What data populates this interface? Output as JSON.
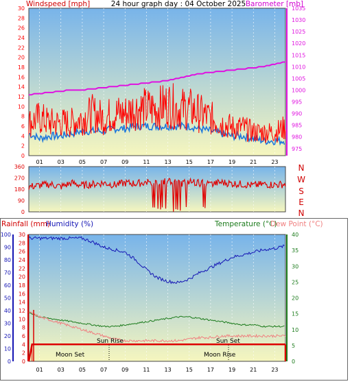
{
  "header": {
    "title": "24 hour graph day : 04 October 2025",
    "left_axis_label": "Windspeed [mph]",
    "right_axis_label": "Barometer [mb]"
  },
  "colors": {
    "wind": "#ff0000",
    "gust_blue": "#1e78dc",
    "barometer": "#e010e0",
    "direction": "#e00000",
    "humidity": "#1414b4",
    "temperature": "#1a7a1a",
    "dewpoint": "#f08080",
    "rainfall": "#dd0000",
    "sky_top": "#78b4ea",
    "sky_bottom": "#f6f6be"
  },
  "direction_axis": {
    "letters": [
      "N",
      "W",
      "S",
      "E",
      "N"
    ]
  },
  "lower_header": {
    "rainfall_label": "Rainfall (mm)",
    "humidity_label": "Humidity (%)",
    "temperature_label": "Temperature (°C)",
    "dewpoint_label": "Dew Point (°C)"
  },
  "events": {
    "moon_set": "Moon Set",
    "sun_rise": "Sun Rise",
    "sun_set": "Sun Set",
    "moon_rise": "Moon Rise"
  },
  "chart_data": [
    {
      "type": "line",
      "name": "wind-barometer",
      "x_ticks": [
        "01",
        "03",
        "05",
        "07",
        "09",
        "11",
        "13",
        "15",
        "17",
        "19",
        "21",
        "23"
      ],
      "left_ylim": [
        0,
        30
      ],
      "left_ticks": [
        0,
        2,
        4,
        6,
        8,
        10,
        12,
        14,
        16,
        18,
        20,
        22,
        24,
        26,
        28,
        30
      ],
      "right_ylim": [
        972,
        1035
      ],
      "right_ticks": [
        975,
        980,
        985,
        990,
        995,
        1000,
        1005,
        1010,
        1015,
        1020,
        1025,
        1030,
        1035
      ],
      "series": [
        {
          "name": "Windspeed [mph]",
          "axis": "left",
          "x": [
            0,
            1,
            2,
            3,
            4,
            5,
            6,
            7,
            8,
            9,
            10,
            11,
            12,
            13,
            14,
            15,
            16,
            17,
            18,
            19,
            20,
            21,
            22,
            23,
            24
          ],
          "values": [
            7,
            8,
            7,
            7,
            7,
            8,
            9,
            8,
            9,
            9,
            10,
            10,
            10,
            11,
            10,
            10,
            9,
            8,
            7,
            6,
            6,
            5,
            5,
            5,
            6
          ]
        },
        {
          "name": "Average wind",
          "axis": "left",
          "x": [
            0,
            1,
            2,
            3,
            4,
            5,
            6,
            7,
            8,
            9,
            10,
            11,
            12,
            13,
            14,
            15,
            16,
            17,
            18,
            19,
            20,
            21,
            22,
            23,
            24
          ],
          "values": [
            4.5,
            3.5,
            4,
            4,
            4.5,
            5,
            5,
            5,
            5.5,
            5.5,
            6,
            6,
            6,
            6,
            6,
            6,
            5.5,
            5,
            4.5,
            4,
            4,
            3.5,
            3,
            3,
            3
          ]
        },
        {
          "name": "Barometer [mb]",
          "axis": "right",
          "x": [
            0,
            1,
            2,
            3,
            4,
            5,
            6,
            7,
            8,
            9,
            10,
            11,
            12,
            13,
            14,
            15,
            16,
            17,
            18,
            19,
            20,
            21,
            22,
            23,
            24
          ],
          "values": [
            998,
            998.5,
            999,
            999.5,
            1000,
            1000,
            1000.5,
            1001,
            1001.5,
            1002,
            1002.5,
            1003,
            1003.5,
            1004,
            1005,
            1006,
            1007,
            1007.5,
            1008,
            1008.5,
            1009,
            1009.5,
            1010,
            1011,
            1012
          ]
        }
      ]
    },
    {
      "type": "line",
      "name": "wind-direction",
      "ylim": [
        0,
        360
      ],
      "y_ticks": [
        0,
        90,
        180,
        270,
        360
      ],
      "series": [
        {
          "name": "Wind direction",
          "x": [
            0,
            1,
            2,
            3,
            4,
            5,
            6,
            7,
            8,
            9,
            10,
            11,
            12,
            13,
            14,
            15,
            16,
            17,
            18,
            19,
            20,
            21,
            22,
            23,
            24
          ],
          "values": [
            200,
            210,
            220,
            200,
            230,
            210,
            220,
            230,
            215,
            230,
            225,
            235,
            230,
            240,
            225,
            240,
            230,
            220,
            235,
            225,
            220,
            210,
            220,
            215,
            220
          ]
        }
      ]
    },
    {
      "type": "line",
      "name": "rain-humidity-temperature",
      "left_ylim": [
        0,
        100
      ],
      "left_ticks": [
        0,
        10,
        20,
        30,
        40,
        50,
        60,
        70,
        80,
        90,
        100
      ],
      "rain_ylim": [
        0,
        30
      ],
      "rain_ticks": [
        0,
        2,
        4,
        6,
        8,
        10,
        12,
        14,
        16,
        18,
        20,
        22,
        24,
        26,
        28,
        30
      ],
      "right_ylim": [
        0,
        40
      ],
      "right_ticks": [
        0,
        5,
        10,
        15,
        20,
        25,
        30,
        35,
        40
      ],
      "series": [
        {
          "name": "Humidity (%)",
          "axis": "left",
          "x": [
            0,
            1,
            2,
            3,
            4,
            5,
            6,
            7,
            8,
            9,
            10,
            11,
            12,
            13,
            14,
            15,
            16,
            17,
            18,
            19,
            20,
            21,
            22,
            23,
            24
          ],
          "values": [
            97,
            97,
            97,
            97,
            97,
            97,
            94,
            90,
            88,
            86,
            80,
            72,
            66,
            63,
            62,
            65,
            70,
            74,
            78,
            82,
            84,
            86,
            88,
            89,
            91
          ]
        },
        {
          "name": "Temperature (°C)",
          "axis": "right",
          "x": [
            0,
            1,
            2,
            3,
            4,
            5,
            6,
            7,
            8,
            9,
            10,
            11,
            12,
            13,
            14,
            15,
            16,
            17,
            18,
            19,
            20,
            21,
            22,
            23,
            24
          ],
          "values": [
            15.5,
            14,
            13.5,
            13,
            12.5,
            12,
            11.5,
            11,
            11,
            11.5,
            12,
            12.5,
            13,
            13.5,
            14,
            14,
            13.5,
            13,
            12.5,
            12,
            11.5,
            11.5,
            11,
            11,
            11
          ]
        },
        {
          "name": "Dew Point (°C)",
          "axis": "right",
          "x": [
            0,
            1,
            2,
            3,
            4,
            5,
            6,
            7,
            8,
            9,
            10,
            11,
            12,
            13,
            14,
            15,
            16,
            17,
            18,
            19,
            20,
            21,
            22,
            23,
            24
          ],
          "values": [
            15.5,
            14,
            13,
            12,
            11,
            10,
            9,
            8,
            7,
            6.5,
            6.5,
            6.5,
            6.5,
            6.5,
            6.5,
            7,
            7.5,
            7.5,
            8,
            8,
            8,
            8,
            8,
            8,
            8
          ]
        },
        {
          "name": "Rainfall (mm)",
          "axis": "rain",
          "x": [
            0,
            0.3,
            1,
            2,
            4,
            6,
            8,
            10,
            12,
            14,
            16,
            18,
            20,
            22,
            24
          ],
          "values": [
            0,
            4,
            4,
            4,
            4,
            4,
            4,
            4,
            4,
            4,
            4,
            4,
            4,
            4,
            4
          ]
        }
      ]
    }
  ]
}
